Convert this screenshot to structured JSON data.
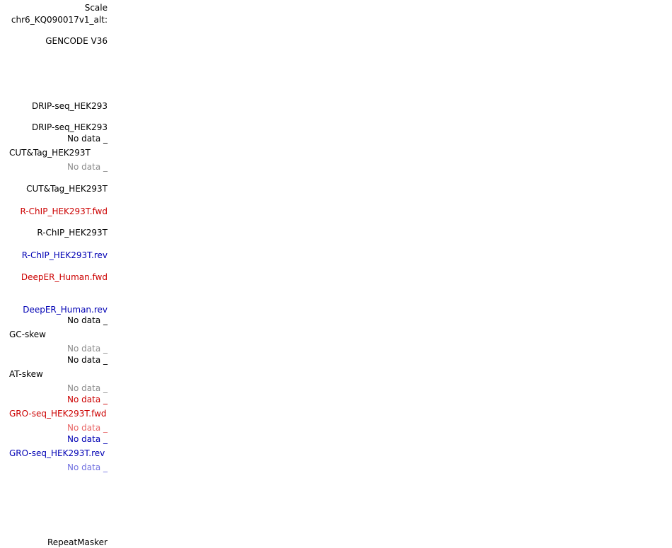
{
  "track_labels": {
    "scale": "Scale",
    "chrom": "chr6_KQ090017v1_alt:",
    "gencode": "GENCODE V36",
    "drip1": "DRIP-seq_HEK293",
    "drip2": "DRIP-seq_HEK293",
    "nodata_drip2": "No data _",
    "cuttag_long": "CUT&Tag_HEK293T",
    "nodata_cuttag": "No data _",
    "cuttag": "CUT&Tag_HEK293T",
    "rchip_fwd": "R-ChIP_HEK293T.fwd",
    "rchip": "R-ChIP_HEK293T",
    "rchip_rev": "R-ChIP_HEK293T.rev",
    "deeper_fwd": "DeepER_Human.fwd",
    "deeper_rev": "DeepER_Human.rev",
    "nodata_gc_top": "No data _",
    "gcskew": "GC-skew",
    "nodata_gc_bottom": "No data _",
    "nodata_at_top": "No data _",
    "atskew": "AT-skew",
    "nodata_at_bottom": "No data _",
    "nodata_gro_fwd_top": "No data _",
    "gro_fwd": "GRO-seq_HEK293T.fwd",
    "nodata_gro_fwd_bottom": "No data _",
    "nodata_gro_rev_top": "No data _",
    "gro_rev": "GRO-seq_HEK293T.rev",
    "nodata_gro_rev_bottom": "No data _",
    "repeatmasker": "RepeatMasker"
  },
  "colors": {
    "default": "#000000",
    "muted": "#8c8c8c",
    "forward": "#cc0000",
    "forward_light": "#e86464",
    "reverse": "#0000b4",
    "reverse_light": "#7070e0"
  }
}
